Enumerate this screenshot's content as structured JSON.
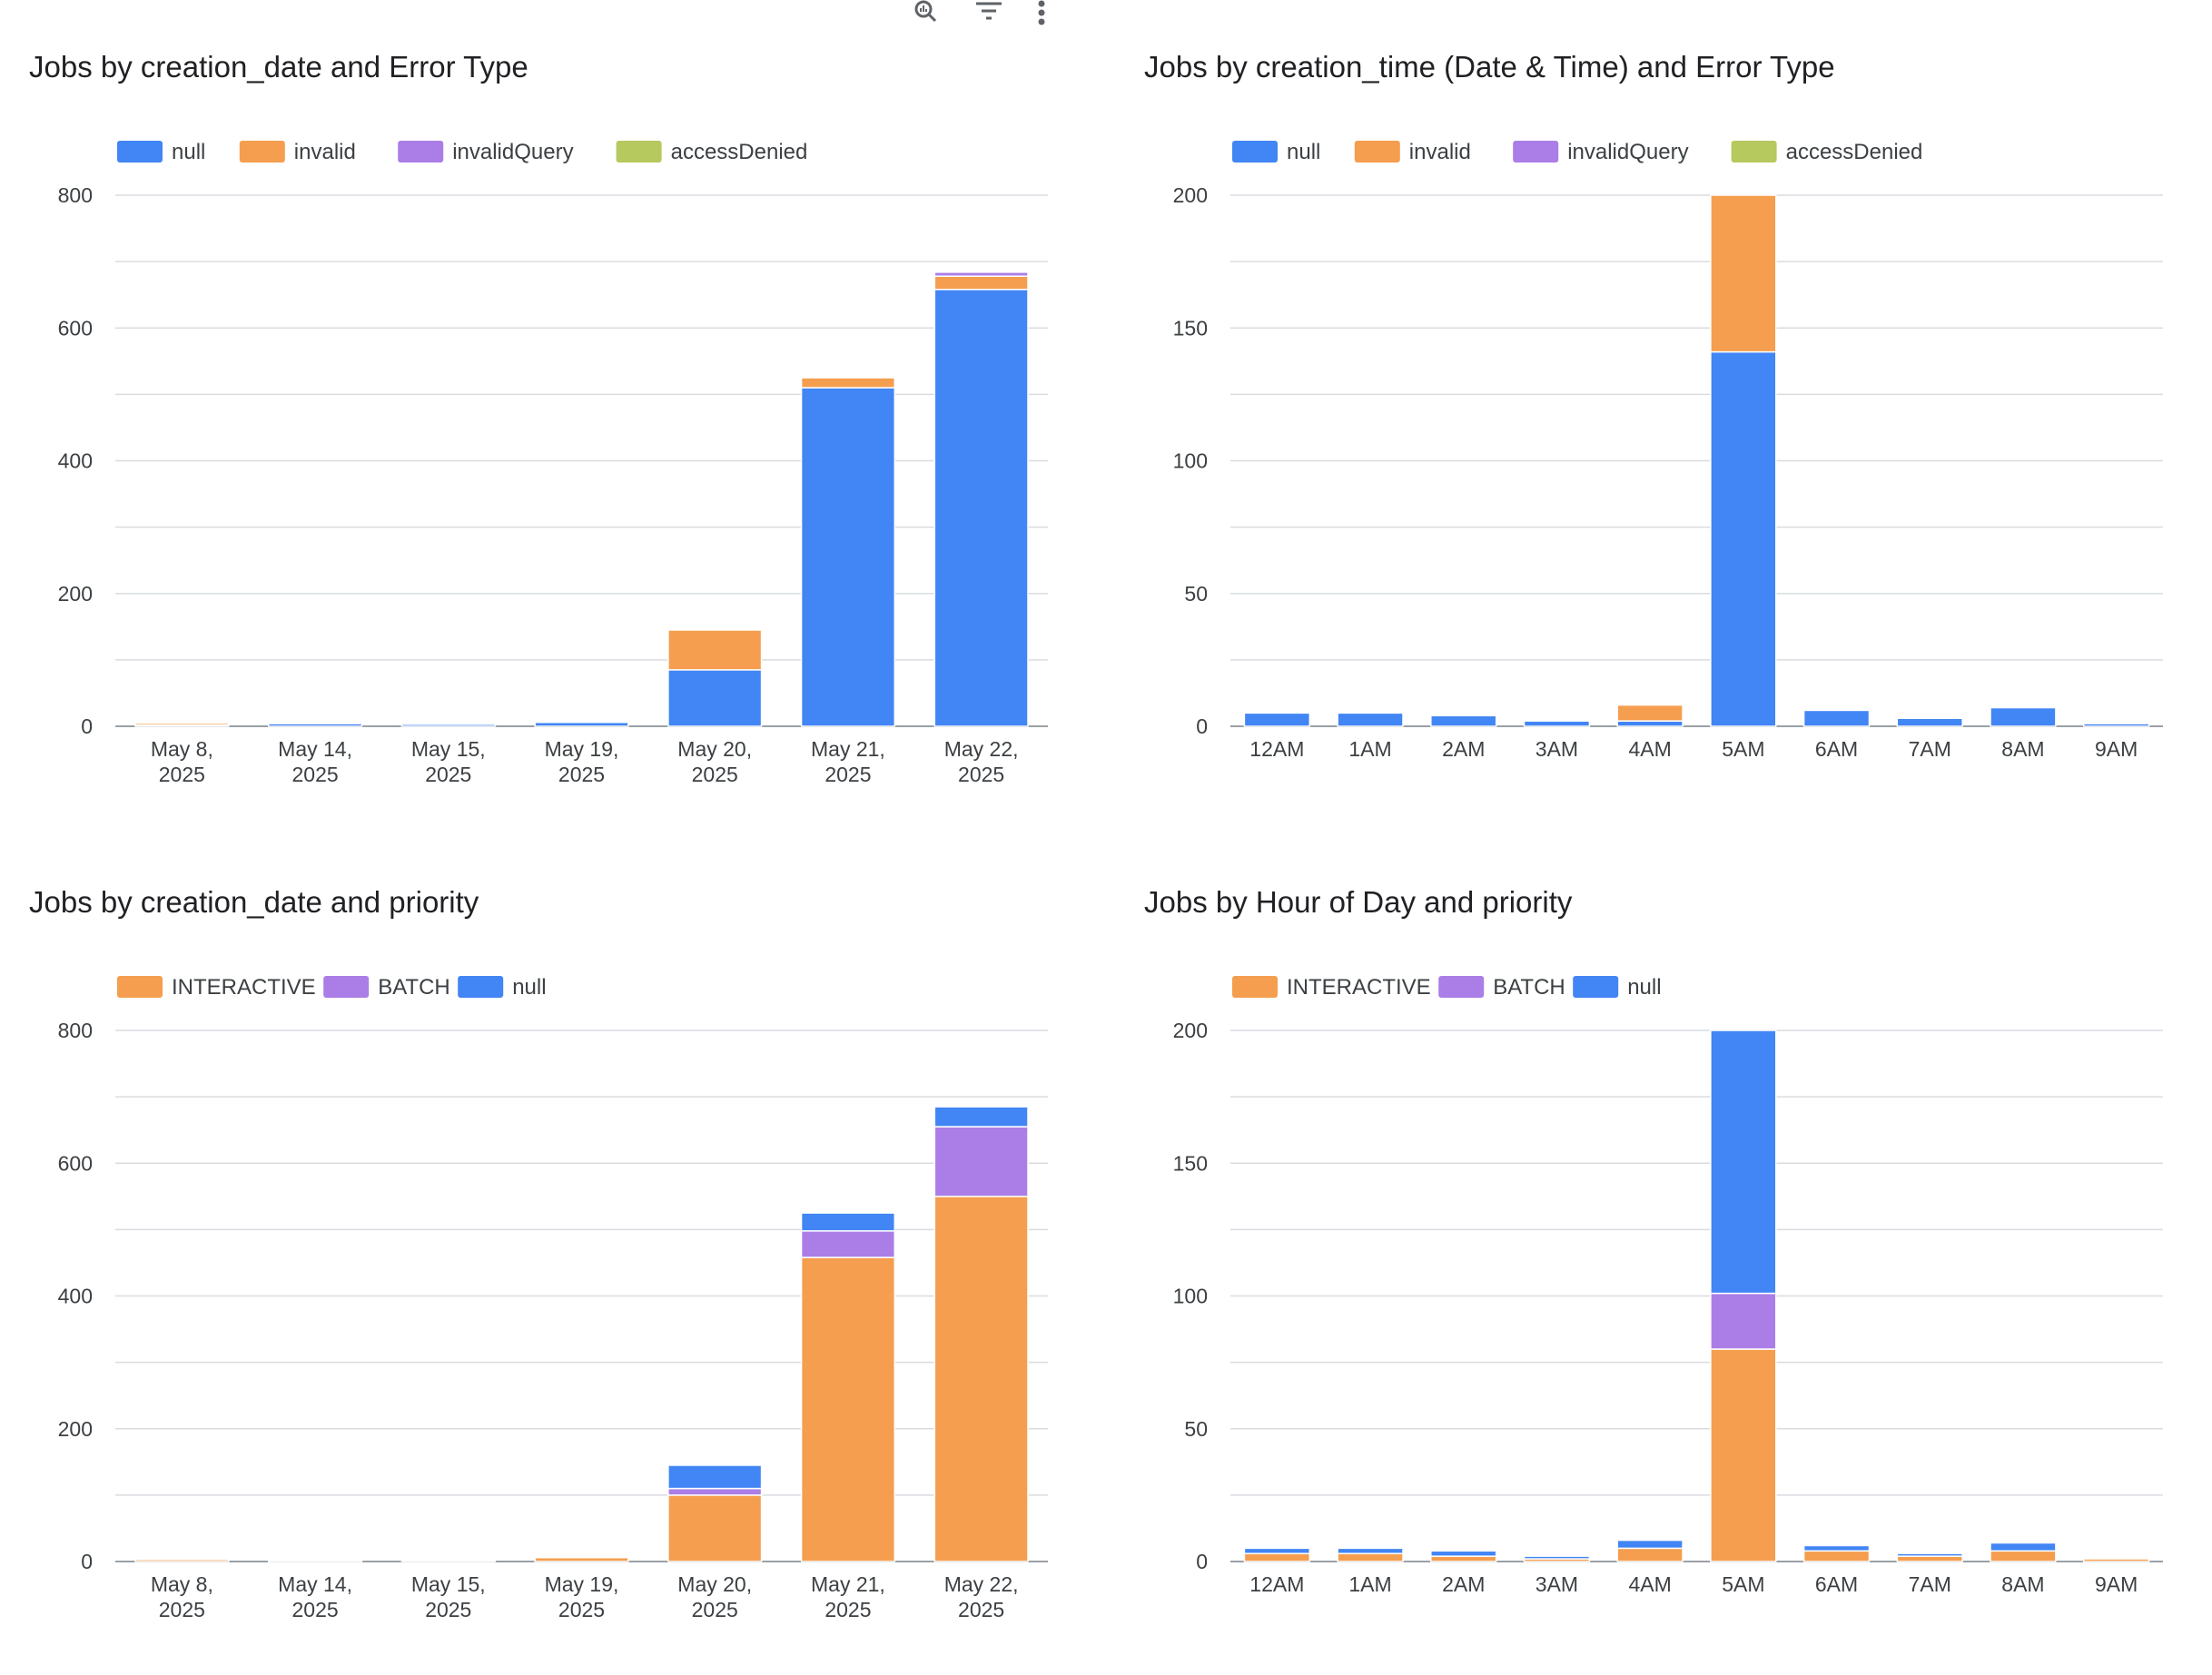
{
  "toolbar": {
    "icons": [
      "zoom-chart-icon",
      "filter-icon",
      "more-vert-icon"
    ]
  },
  "colors": {
    "null_error": "#4285f4",
    "invalid": "#f59e4f",
    "invalidQuery": "#aa7ee6",
    "accessDenied": "#b5c95f",
    "grid": "#dadce0",
    "axis": "#9aa0a6"
  },
  "chart_data": [
    {
      "type": "bar",
      "stacked": true,
      "title": "Jobs by creation_date and Error Type",
      "xlabel": "",
      "ylabel": "",
      "categories": [
        [
          "May 8,",
          "2025"
        ],
        [
          "May 14,",
          "2025"
        ],
        [
          "May 15,",
          "2025"
        ],
        [
          "May 19,",
          "2025"
        ],
        [
          "May 20,",
          "2025"
        ],
        [
          "May 21,",
          "2025"
        ],
        [
          "May 22,",
          "2025"
        ]
      ],
      "series": [
        {
          "name": "null",
          "color": "#4285f4",
          "values": [
            2,
            4,
            3,
            6,
            85,
            510,
            658
          ]
        },
        {
          "name": "invalid",
          "color": "#f59e4f",
          "values": [
            3,
            0,
            0,
            2,
            60,
            15,
            20
          ]
        },
        {
          "name": "invalidQuery",
          "color": "#aa7ee6",
          "values": [
            0,
            0,
            0,
            2,
            0,
            0,
            6
          ]
        },
        {
          "name": "accessDenied",
          "color": "#b5c95f",
          "values": [
            1,
            0,
            0,
            0,
            0,
            0,
            0
          ]
        }
      ],
      "ylim": [
        0,
        800
      ],
      "yticks": [
        0,
        200,
        400,
        600,
        800
      ],
      "legend": "top-left",
      "grid": true
    },
    {
      "type": "bar",
      "stacked": true,
      "title": "Jobs by creation_time (Date & Time) and Error Type",
      "xlabel": "",
      "ylabel": "",
      "categories": [
        [
          "12AM"
        ],
        [
          "1AM"
        ],
        [
          "2AM"
        ],
        [
          "3AM"
        ],
        [
          "4AM"
        ],
        [
          "5AM"
        ],
        [
          "6AM"
        ],
        [
          "7AM"
        ],
        [
          "8AM"
        ],
        [
          "9AM"
        ]
      ],
      "series": [
        {
          "name": "null",
          "color": "#4285f4",
          "values": [
            5,
            5,
            4,
            2,
            2,
            141,
            6,
            3,
            7,
            1
          ]
        },
        {
          "name": "invalid",
          "color": "#f59e4f",
          "values": [
            0,
            0,
            0,
            0,
            6,
            59,
            0,
            0,
            0,
            0
          ]
        },
        {
          "name": "invalidQuery",
          "color": "#aa7ee6",
          "values": [
            0,
            0,
            0,
            0,
            0,
            0,
            0,
            0,
            0,
            0
          ]
        },
        {
          "name": "accessDenied",
          "color": "#b5c95f",
          "values": [
            0,
            0,
            0,
            0,
            0,
            0,
            0,
            0,
            0,
            0
          ]
        }
      ],
      "ylim": [
        0,
        200
      ],
      "yticks": [
        0,
        50,
        100,
        150,
        200
      ],
      "legend": "top-left",
      "grid": true
    },
    {
      "type": "bar",
      "stacked": true,
      "title": "Jobs by creation_date and priority",
      "xlabel": "",
      "ylabel": "",
      "categories": [
        [
          "May 8,",
          "2025"
        ],
        [
          "May 14,",
          "2025"
        ],
        [
          "May 15,",
          "2025"
        ],
        [
          "May 19,",
          "2025"
        ],
        [
          "May 20,",
          "2025"
        ],
        [
          "May 21,",
          "2025"
        ],
        [
          "May 22,",
          "2025"
        ]
      ],
      "series": [
        {
          "name": "INTERACTIVE",
          "color": "#f59e4f",
          "values": [
            3,
            2,
            2,
            6,
            100,
            458,
            550
          ]
        },
        {
          "name": "BATCH",
          "color": "#aa7ee6",
          "values": [
            0,
            0,
            0,
            0,
            10,
            40,
            105
          ]
        },
        {
          "name": "null",
          "color": "#4285f4",
          "values": [
            2,
            2,
            1,
            2,
            35,
            27,
            30
          ]
        }
      ],
      "ylim": [
        0,
        800
      ],
      "yticks": [
        0,
        200,
        400,
        600,
        800
      ],
      "legend": "top-left",
      "grid": true
    },
    {
      "type": "bar",
      "stacked": true,
      "title": "Jobs by Hour of Day and priority",
      "xlabel": "",
      "ylabel": "",
      "categories": [
        [
          "12AM"
        ],
        [
          "1AM"
        ],
        [
          "2AM"
        ],
        [
          "3AM"
        ],
        [
          "4AM"
        ],
        [
          "5AM"
        ],
        [
          "6AM"
        ],
        [
          "7AM"
        ],
        [
          "8AM"
        ],
        [
          "9AM"
        ]
      ],
      "series": [
        {
          "name": "INTERACTIVE",
          "color": "#f59e4f",
          "values": [
            3,
            3,
            2,
            1,
            5,
            80,
            4,
            2,
            4,
            1
          ]
        },
        {
          "name": "BATCH",
          "color": "#aa7ee6",
          "values": [
            0,
            0,
            0,
            0,
            0,
            21,
            0,
            0,
            0,
            0
          ]
        },
        {
          "name": "null",
          "color": "#4285f4",
          "values": [
            2,
            2,
            2,
            1,
            3,
            99,
            2,
            1,
            3,
            0
          ]
        }
      ],
      "ylim": [
        0,
        200
      ],
      "yticks": [
        0,
        50,
        100,
        150,
        200
      ],
      "legend": "top-left",
      "grid": true
    }
  ]
}
